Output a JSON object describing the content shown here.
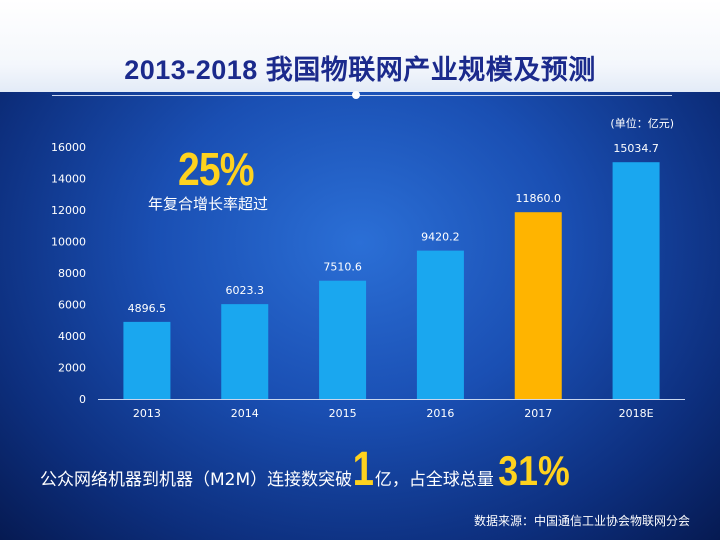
{
  "title": "2013-2018 我国物联网产业规模及预测",
  "unit_label": "(单位：亿元)",
  "callout": {
    "value": "25%",
    "label": "年复合增长率超过"
  },
  "bottom": {
    "part1": "公众网络机器到机器（M2M）连接数突破",
    "highlight1": "1",
    "part2": "亿，占全球总量",
    "highlight2": "31%"
  },
  "source": "数据来源：中国通信工业协会物联网分会",
  "colors": {
    "bar": "#1aa7ef",
    "highlight_bar": "#ffb400",
    "title": "#1b2a8c",
    "accent_text": "#ffd21e"
  },
  "chart_data": {
    "type": "bar",
    "title": "2013-2018 我国物联网产业规模及预测",
    "xlabel": "",
    "ylabel": "",
    "categories": [
      "2013",
      "2014",
      "2015",
      "2016",
      "2017",
      "2018E"
    ],
    "values": [
      4896.5,
      6023.3,
      7510.6,
      9420.2,
      11860.0,
      15034.7
    ],
    "value_labels": [
      "4896.5",
      "6023.3",
      "7510.6",
      "9420.2",
      "11860.0",
      "15034.7"
    ],
    "highlight_index": 4,
    "ylim": [
      0,
      16000
    ],
    "yticks": [
      0,
      2000,
      4000,
      6000,
      8000,
      10000,
      12000,
      14000,
      16000
    ],
    "grid": false
  }
}
